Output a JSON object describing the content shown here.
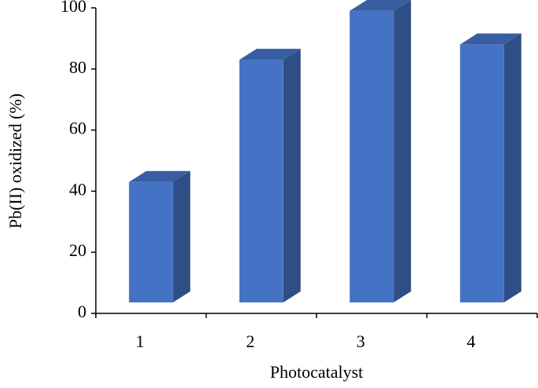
{
  "chart_data": {
    "type": "bar3d",
    "x_label": "Photocatalyst",
    "y_label": "Pb(II) oxidized (%)",
    "categories": [
      "1",
      "2",
      "3",
      "4"
    ],
    "values": [
      43,
      83,
      99,
      88
    ],
    "color": "#4472c4",
    "ylim": [
      0,
      100
    ],
    "yticks": [
      0,
      20,
      40,
      60,
      80,
      100
    ]
  }
}
